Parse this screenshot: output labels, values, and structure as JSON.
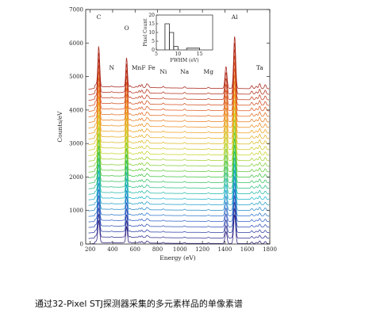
{
  "chart_data": {
    "type": "line",
    "xlabel": "Energy (eV)",
    "ylabel": "Counts/eV",
    "xlim": [
      160,
      1800
    ],
    "ylim": [
      0,
      7000
    ],
    "xticks": [
      200,
      400,
      600,
      800,
      1000,
      1200,
      1400,
      1600,
      1800
    ],
    "yticks": [
      0,
      1000,
      2000,
      3000,
      4000,
      5000,
      6000,
      7000
    ],
    "n_series": 29,
    "series_offset": 165,
    "color_map": [
      "#2b1a7a",
      "#2f5fc8",
      "#19b3c8",
      "#3cc43c",
      "#c8d42a",
      "#f0a020",
      "#e05a20",
      "#a52018"
    ],
    "peak_labels": [
      {
        "text": "C",
        "energy": 277
      },
      {
        "text": "N",
        "energy": 392
      },
      {
        "text": "O",
        "energy": 525
      },
      {
        "text": "MnF",
        "energy": 660
      },
      {
        "text": "Fe",
        "energy": 705
      },
      {
        "text": "Ni",
        "energy": 851
      },
      {
        "text": "Na",
        "energy": 1041
      },
      {
        "text": "Mg",
        "energy": 1254
      },
      {
        "text": "Al",
        "energy": 1487
      },
      {
        "text": "Ta",
        "energy": 1710
      }
    ],
    "inset": {
      "type": "histogram",
      "xlabel": "FWHM (eV)",
      "ylabel": "Pixel Count",
      "xlim": [
        5,
        18
      ],
      "ylim": [
        0,
        20
      ],
      "xticks": [
        5,
        10,
        15
      ],
      "yticks": [
        0,
        5,
        10,
        15,
        20
      ],
      "bins": [
        {
          "from": 7,
          "to": 8,
          "count": 15
        },
        {
          "from": 8,
          "to": 9,
          "count": 10
        },
        {
          "from": 9,
          "to": 10,
          "count": 2
        },
        {
          "from": 12,
          "to": 15,
          "count": 1
        }
      ]
    }
  },
  "caption": "通过32-Pixel STJ探测器采集的多元素样品的单像素谱"
}
